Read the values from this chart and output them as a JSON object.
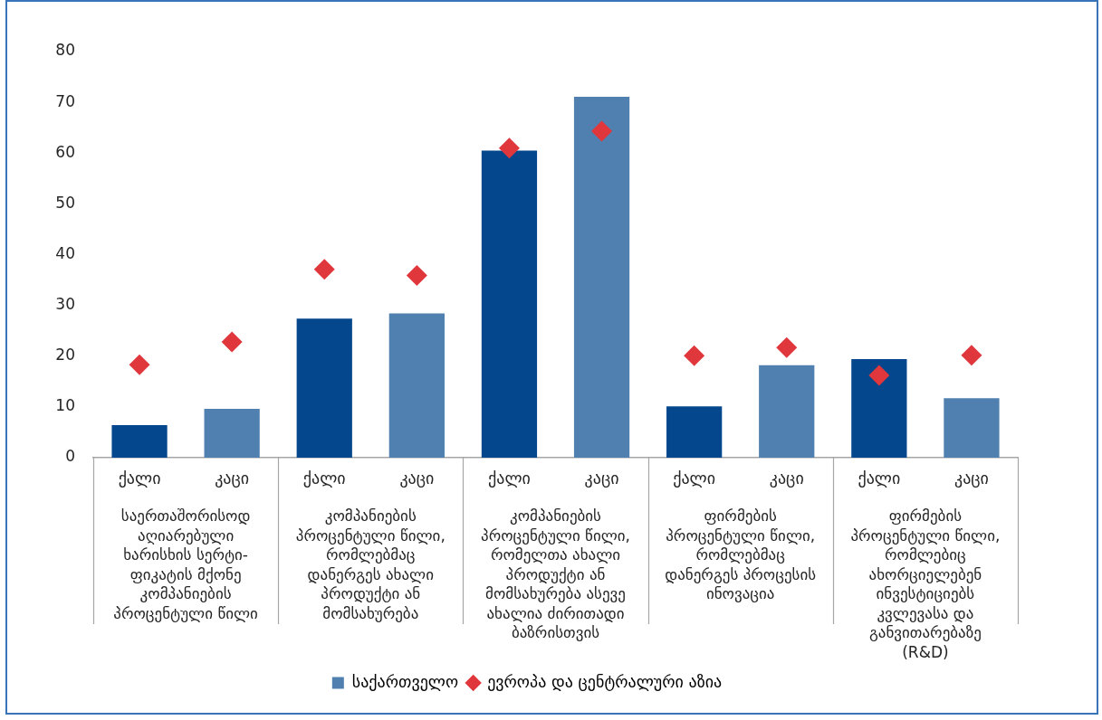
{
  "chart_data": {
    "type": "bar",
    "categories": [
      "ქალი",
      "კაცი",
      "ქალი",
      "კაცი",
      "ქალი",
      "კაცი",
      "ქალი",
      "კაცი",
      "ქალი",
      "კაცი"
    ],
    "series": [
      {
        "name": "საქართველო",
        "color": "#4f80b0",
        "colors": [
          "#04478c",
          "#4f80b0",
          "#04478c",
          "#4f80b0",
          "#04478c",
          "#4f80b0",
          "#04478c",
          "#4f80b0",
          "#04478c",
          "#4f80b0"
        ],
        "values": [
          6.4,
          9.6,
          27.4,
          28.4,
          60.5,
          71.1,
          10.1,
          18.2,
          19.4,
          11.7
        ]
      },
      {
        "name": "ევროპა და ცენტრალური აზია",
        "type": "scatter",
        "marker": "diamond",
        "color": "#e0373d",
        "values": [
          18.3,
          22.8,
          37.1,
          35.9,
          61.0,
          64.3,
          20.1,
          21.7,
          16.2,
          20.2
        ]
      }
    ],
    "ylim": [
      0,
      80
    ],
    "yticks": [
      0,
      10,
      20,
      30,
      40,
      50,
      60,
      70,
      80
    ],
    "grid": false,
    "legend": "bottom",
    "annotations": [
      "საერთაშორისოდ აღიარებული ხარისხის სერტი-ფიკატის მქონე კომპანიების პროცენტული წილი",
      "კომპანიების პროცენტული წილი, რომლებმაც დანერგეს ახალი პროდუქტი ან მომსახურება",
      "კომპანიების პროცენტული წილი, რომელთა ახალი პროდუქტი ან მომსახურება ასევე ახალია ძირითადი ბაზრისთვის",
      "ფირმების პროცენტული წილი, რომლებმაც დანერგეს პროცესის ინოვაცია",
      "ფირმების პროცენტული წილი, რომლებიც ახორციელებენ ინვესტიციებს კვლევასა და განვითარებაზე (R&D)"
    ]
  }
}
